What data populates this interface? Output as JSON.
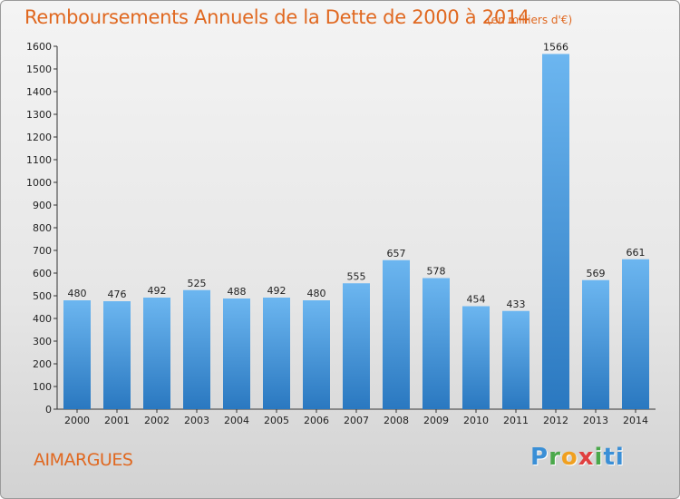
{
  "chart_data": {
    "type": "bar",
    "title": "Remboursements Annuels de la Dette de 2000 à 2014",
    "unit_label": "(en milliers d'€)",
    "categories": [
      "2000",
      "2001",
      "2002",
      "2003",
      "2004",
      "2005",
      "2006",
      "2007",
      "2008",
      "2009",
      "2010",
      "2011",
      "2012",
      "2013",
      "2014"
    ],
    "values": [
      480,
      476,
      492,
      525,
      488,
      492,
      480,
      555,
      657,
      578,
      454,
      433,
      1566,
      569,
      661
    ],
    "ylim": [
      0,
      1600
    ],
    "yticks": [
      0,
      100,
      200,
      300,
      400,
      500,
      600,
      700,
      800,
      900,
      1000,
      1100,
      1200,
      1300,
      1400,
      1500,
      1600
    ],
    "grid": false,
    "bar_color": "#4a9ee2"
  },
  "commune": "AIMARGUES",
  "brand": {
    "letters": [
      "P",
      "r",
      "o",
      "x",
      "i",
      "ti"
    ]
  }
}
